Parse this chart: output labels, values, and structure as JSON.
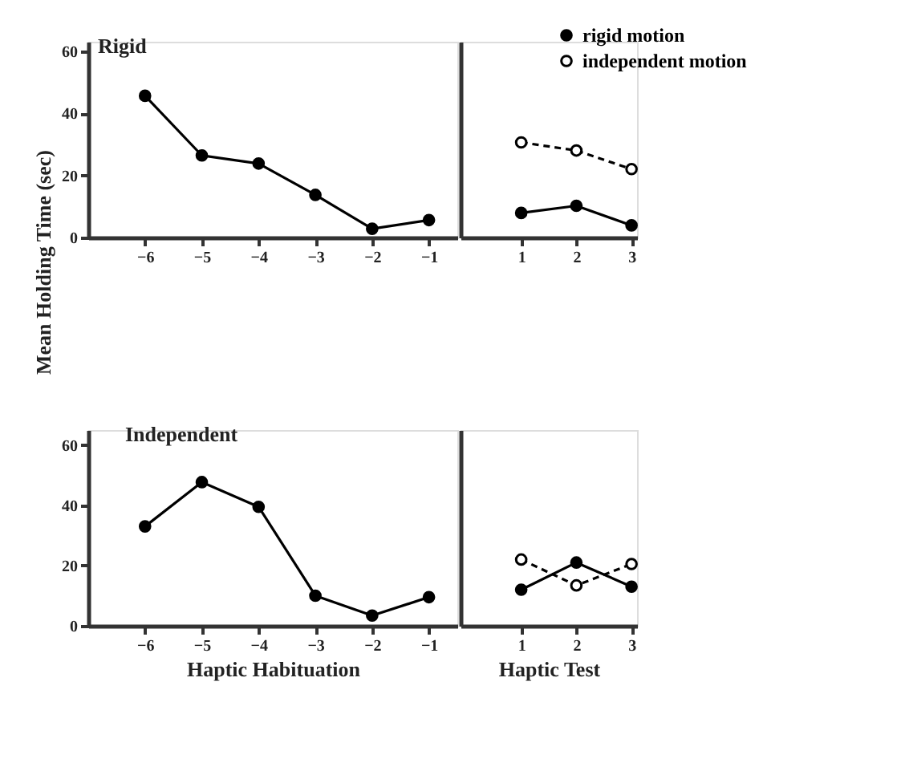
{
  "chart_data": [
    {
      "type": "line",
      "title": "Rigid",
      "ylabel": "Mean Holding Time (sec)",
      "x": [
        -6,
        -5,
        -4,
        -3,
        -2,
        -1
      ],
      "xlim": [
        -7,
        -0.5
      ],
      "xticks": [
        -6,
        -5,
        -4,
        -3,
        -2,
        -1
      ],
      "ylim": [
        0,
        63
      ],
      "yticks": [
        0,
        20,
        40,
        60
      ],
      "marker": "circle",
      "grid": false,
      "series": [
        {
          "color": "#000000",
          "line_style": "solid",
          "values": [
            45.6,
            26.4,
            23.8,
            13.7,
            2.8,
            5.6
          ]
        }
      ]
    },
    {
      "type": "line",
      "x": [
        1,
        2,
        3
      ],
      "xlim": [
        -0.1,
        3.1
      ],
      "xticks": [
        1,
        2,
        3
      ],
      "ylim": [
        0,
        63
      ],
      "tick_labels": "x",
      "marker": "circle",
      "grid": false,
      "legend": "top right",
      "series": [
        {
          "name": "rigid motion",
          "color": "#000000",
          "line_style": "solid",
          "values": [
            7.9,
            10.2,
            3.9
          ]
        },
        {
          "name": "independent motion",
          "color": "#000000",
          "line_style": "dashed",
          "values": [
            30.6,
            28,
            22
          ]
        }
      ]
    },
    {
      "type": "line",
      "title": "Independent",
      "xlabel": "Haptic Habituation",
      "x": [
        -6,
        -5,
        -4,
        -3,
        -2,
        -1
      ],
      "xlim": [
        -7,
        -0.5
      ],
      "xticks": [
        -6,
        -5,
        -4,
        -3,
        -2,
        -1
      ],
      "ylim": [
        0,
        65
      ],
      "yticks": [
        0,
        20,
        40,
        60
      ],
      "marker": "circle",
      "grid": false,
      "series": [
        {
          "color": "#000000",
          "line_style": "solid",
          "values": [
            33,
            47.7,
            39.5,
            10,
            3.4,
            9.5
          ]
        }
      ]
    },
    {
      "type": "line",
      "xlabel": "Haptic Test",
      "x": [
        1,
        2,
        3
      ],
      "xlim": [
        -0.1,
        3.1
      ],
      "xticks": [
        1,
        2,
        3
      ],
      "ylim": [
        0,
        65
      ],
      "tick_labels": "x",
      "marker": "circle",
      "grid": false,
      "series": [
        {
          "color": "#000000",
          "line_style": "solid",
          "values": [
            12,
            21,
            13
          ]
        },
        {
          "color": "#000000",
          "line_style": "dashed",
          "values": [
            22,
            13.4,
            20.5
          ]
        }
      ]
    }
  ]
}
